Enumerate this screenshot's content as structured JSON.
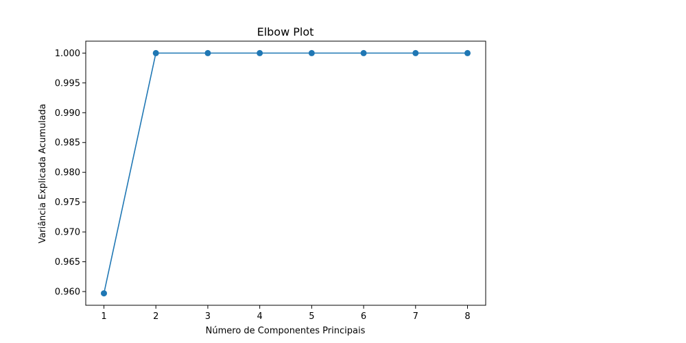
{
  "chart_data": {
    "type": "line",
    "title": "Elbow Plot",
    "xlabel": "Número de Componentes Principais",
    "ylabel": "Variância Explicada Acumulada",
    "x": [
      1,
      2,
      3,
      4,
      5,
      6,
      7,
      8
    ],
    "series": [
      {
        "values": [
          0.9597,
          1.0,
          1.0,
          1.0,
          1.0,
          1.0,
          1.0,
          1.0
        ]
      }
    ],
    "xlim": [
      0.65,
      8.35
    ],
    "ylim": [
      0.9577,
      1.002
    ],
    "xticks": [
      1,
      2,
      3,
      4,
      5,
      6,
      7,
      8
    ],
    "xtick_labels": [
      "1",
      "2",
      "3",
      "4",
      "5",
      "6",
      "7",
      "8"
    ],
    "yticks": [
      0.96,
      0.965,
      0.97,
      0.975,
      0.98,
      0.985,
      0.99,
      0.995,
      1.0
    ],
    "ytick_labels": [
      "0.960",
      "0.965",
      "0.970",
      "0.975",
      "0.980",
      "0.985",
      "0.990",
      "0.995",
      "1.000"
    ],
    "grid": false,
    "legend": "none",
    "markers": true,
    "color": "#1f77b4"
  }
}
